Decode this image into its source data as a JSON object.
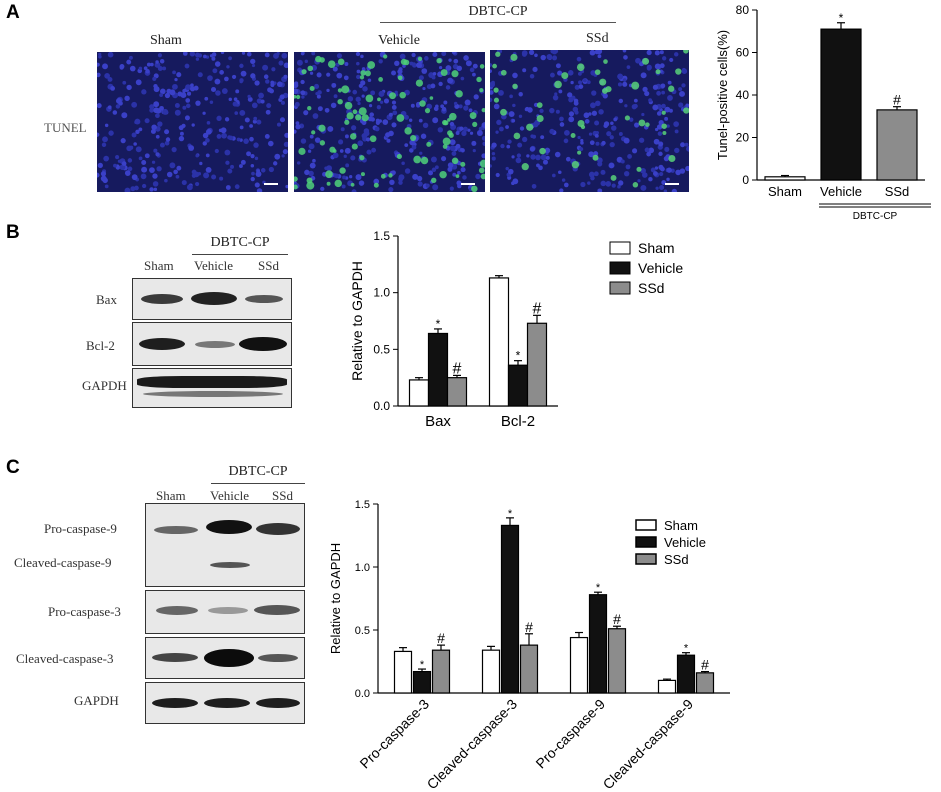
{
  "panels": {
    "a": "A",
    "b": "B",
    "c": "C"
  },
  "panel_a": {
    "group_label": "DBTC-CP",
    "image_labels": [
      "Sham",
      "Vehicle",
      "SSd"
    ],
    "row_label": "TUNEL"
  },
  "panel_b": {
    "group_label": "DBTC-CP",
    "lane_labels": [
      "Sham",
      "Vehicle",
      "SSd"
    ],
    "row_labels": [
      "Bax",
      "Bcl-2",
      "GAPDH"
    ]
  },
  "panel_c": {
    "group_label": "DBTC-CP",
    "lane_labels": [
      "Sham",
      "Vehicle",
      "SSd"
    ],
    "row_labels": [
      "Pro-caspase-9",
      "Cleaved-caspase-9",
      "Pro-caspase-3",
      "Cleaved-caspase-3",
      "GAPDH"
    ]
  },
  "colors": {
    "sham": "#ffffff",
    "vehicle": "#111111",
    "ssd": "#8c8c8c"
  },
  "chart_data": [
    {
      "type": "bar",
      "id": "A",
      "categories": [
        "Sham",
        "Vehicle",
        "SSd"
      ],
      "group_label": "DBTC-CP",
      "values": [
        1.5,
        71,
        33
      ],
      "errors": [
        0.6,
        3,
        1.5
      ],
      "markers": [
        "",
        "*",
        "#"
      ],
      "ylabel": "Tunel-positive cells(%)",
      "ylim": [
        0,
        80
      ],
      "yticks": [
        0,
        20,
        40,
        60,
        80
      ]
    },
    {
      "type": "bar",
      "id": "B",
      "categories": [
        "Bax",
        "Bcl-2"
      ],
      "series": [
        {
          "name": "Sham",
          "values": [
            0.23,
            1.13
          ],
          "errors": [
            0.02,
            0.02
          ],
          "markers": [
            "",
            ""
          ]
        },
        {
          "name": "Vehicle",
          "values": [
            0.64,
            0.36
          ],
          "errors": [
            0.04,
            0.04
          ],
          "markers": [
            "*",
            "*"
          ]
        },
        {
          "name": "SSd",
          "values": [
            0.25,
            0.73
          ],
          "errors": [
            0.02,
            0.07
          ],
          "markers": [
            "#",
            "#"
          ]
        }
      ],
      "ylabel": "Relative to GAPDH",
      "ylim": [
        0,
        1.5
      ],
      "yticks": [
        0.0,
        0.5,
        1.0,
        1.5
      ],
      "legend": "right"
    },
    {
      "type": "bar",
      "id": "C",
      "categories": [
        "Pro-caspase-3",
        "Cleaved-caspase-3",
        "Pro-caspase-9",
        "Cleaved-caspase-9"
      ],
      "series": [
        {
          "name": "Sham",
          "values": [
            0.33,
            0.34,
            0.44,
            0.1
          ],
          "errors": [
            0.03,
            0.03,
            0.04,
            0.01
          ],
          "markers": [
            "",
            "",
            "",
            ""
          ]
        },
        {
          "name": "Vehicle",
          "values": [
            0.17,
            1.33,
            0.78,
            0.3
          ],
          "errors": [
            0.02,
            0.06,
            0.02,
            0.02
          ],
          "markers": [
            "*",
            "*",
            "*",
            "*"
          ]
        },
        {
          "name": "SSd",
          "values": [
            0.34,
            0.38,
            0.51,
            0.16
          ],
          "errors": [
            0.04,
            0.09,
            0.02,
            0.01
          ],
          "markers": [
            "#",
            "#",
            "#",
            "#"
          ]
        }
      ],
      "ylabel": "Relative to GAPDH",
      "ylim": [
        0,
        1.5
      ],
      "yticks": [
        0.0,
        0.5,
        1.0,
        1.5
      ],
      "legend": "top-right"
    }
  ]
}
